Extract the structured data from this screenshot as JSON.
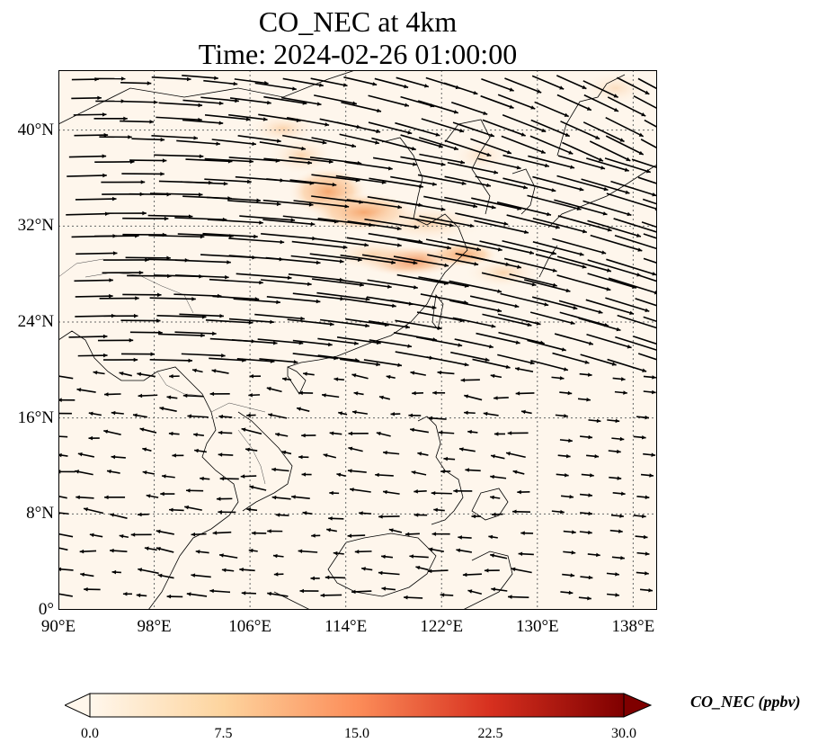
{
  "title": {
    "line1": "CO_NEC at 4km",
    "line2": "Time: 2024-02-26 01:00:00"
  },
  "map": {
    "lon_range": [
      90,
      140
    ],
    "lat_range": [
      0,
      45
    ],
    "lat_ticks": [
      "0°",
      "8°N",
      "16°N",
      "24°N",
      "32°N",
      "40°N"
    ],
    "lat_values": [
      0,
      8,
      16,
      24,
      32,
      40
    ],
    "lon_ticks": [
      "90°E",
      "98°E",
      "106°E",
      "114°E",
      "122°E",
      "130°E",
      "138°E"
    ],
    "lon_values": [
      90,
      98,
      106,
      114,
      122,
      130,
      138
    ],
    "gridlines": "dotted",
    "variable": "CO_NEC",
    "overlay": "wind vectors",
    "field_description": "Plume of elevated CO from central China eastward over East China Sea toward Japan; background near 0–3 ppbv"
  },
  "colorbar": {
    "label": "CO_NEC (ppbv)",
    "ticks": [
      "0.0",
      "7.5",
      "15.0",
      "22.5",
      "30.0"
    ],
    "tick_values": [
      0,
      7.5,
      15,
      22.5,
      30
    ],
    "range": [
      0,
      30
    ],
    "colormap": "OrRd",
    "extend": "both",
    "colors": [
      "#fff7ec",
      "#fdd49e",
      "#fc8d59",
      "#d7301f",
      "#7f0000"
    ]
  }
}
